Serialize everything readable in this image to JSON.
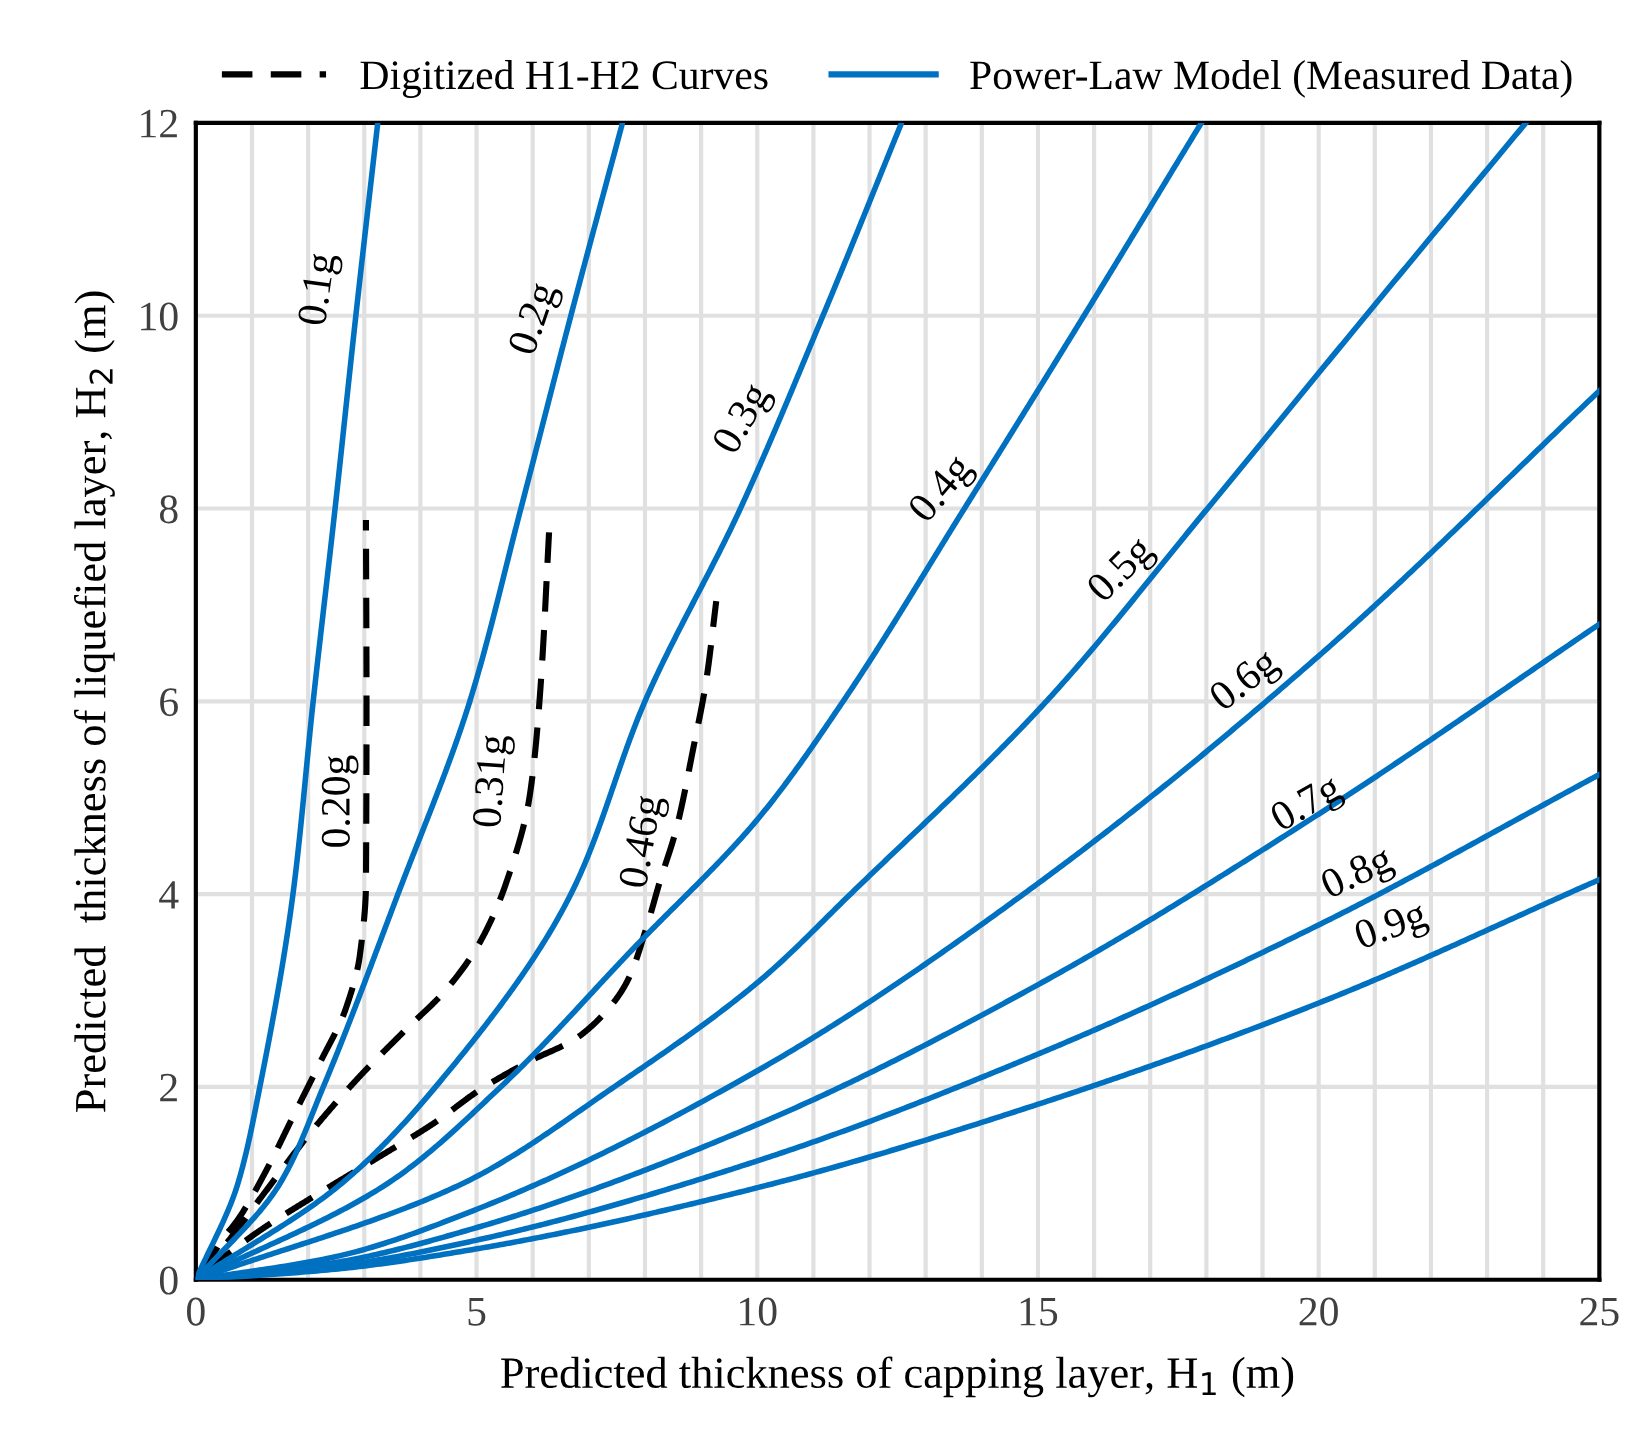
{
  "chart_data": {
    "type": "line",
    "xlabel": "Predicted thickness of capping layer, H$_{1}$ (m)",
    "ylabel": "Predicted  thickness of liquefied layer, H$_{2}$ (m)",
    "xlim": [
      0,
      25
    ],
    "ylim": [
      0,
      12
    ],
    "xticks": [
      0,
      {
        "value": 1,
        "label": null
      },
      {
        "value": 2,
        "label": null
      },
      {
        "value": 3,
        "label": null
      },
      {
        "value": 4,
        "label": null
      },
      5,
      {
        "value": 6,
        "label": null
      },
      {
        "value": 7,
        "label": null
      },
      {
        "value": 8,
        "label": null
      },
      {
        "value": 9,
        "label": null
      },
      10,
      {
        "value": 11,
        "label": null
      },
      {
        "value": 12,
        "label": null
      },
      {
        "value": 13,
        "label": null
      },
      {
        "value": 14,
        "label": null
      },
      15,
      {
        "value": 16,
        "label": null
      },
      {
        "value": 17,
        "label": null
      },
      {
        "value": 18,
        "label": null
      },
      {
        "value": 19,
        "label": null
      },
      20,
      {
        "value": 21,
        "label": null
      },
      {
        "value": 22,
        "label": null
      },
      {
        "value": 23,
        "label": null
      },
      {
        "value": 24,
        "label": null
      },
      25
    ],
    "yticks": [
      0,
      2,
      4,
      6,
      8,
      10,
      12
    ],
    "grid": true,
    "legend": "top",
    "marker": "none",
    "series": [
      {
        "name": "Digitized H1-H2 Curves",
        "color": "#000000",
        "line_style": "dashed",
        "x": [
          0.13,
          0.43,
          0.78,
          1.26,
          1.73,
          2.21,
          2.67,
          2.92,
          3.03,
          3.04,
          3.03
        ],
        "values": [
          0.06,
          0.38,
          0.65,
          1.14,
          1.69,
          2.25,
          2.81,
          3.36,
          4.1,
          6.0,
          7.88
        ]
      },
      {
        "color": "#000000",
        "line_style": "dashed",
        "x": [
          0,
          0.55,
          1.26,
          2.09,
          2.92,
          3.75,
          4.46,
          5.06,
          5.53,
          5.95,
          6.13,
          6.3
        ],
        "values": [
          0,
          0.38,
          0.93,
          1.56,
          2.11,
          2.6,
          3.01,
          3.5,
          4.12,
          5.03,
          6.07,
          7.84
        ]
      },
      {
        "color": "#000000",
        "line_style": "dashed",
        "x": [
          0.19,
          1.14,
          2.09,
          3.28,
          4.23,
          5.06,
          5.89,
          6.84,
          7.67,
          8.02,
          8.26,
          8.56,
          8.86,
          9.09,
          9.27
        ],
        "values": [
          0.1,
          0.51,
          0.86,
          1.28,
          1.62,
          1.97,
          2.25,
          2.53,
          3.08,
          3.64,
          4.12,
          4.68,
          5.51,
          6.21,
          7.04
        ]
      },
      {
        "name": "Power-Law Model (Measured Data)",
        "color": "#0070c0",
        "line_style": "solid",
        "x": [
          0,
          0.75,
          1.14,
          1.73,
          2.09,
          2.48,
          2.85,
          3.24
        ],
        "values": [
          0,
          1,
          2,
          4,
          6,
          8,
          10,
          12
        ]
      },
      {
        "color": "#0070c0",
        "line_style": "solid",
        "x": [
          0,
          1.5,
          2.27,
          3.6,
          4.88,
          5.79,
          6.68,
          7.6
        ],
        "values": [
          0,
          1,
          2,
          4,
          6,
          8,
          10,
          12
        ]
      },
      {
        "color": "#0070c0",
        "line_style": "solid",
        "x": [
          0,
          2.6,
          4.27,
          6.68,
          8.0,
          9.7,
          11.17,
          12.57
        ],
        "values": [
          0,
          1,
          2,
          4,
          6,
          8,
          10,
          12
        ]
      },
      {
        "color": "#0070c0",
        "line_style": "solid",
        "x": [
          0,
          3.42,
          5.43,
          7.8,
          10.04,
          11.53,
          13.69,
          15.82,
          17.91
        ],
        "values": [
          0,
          1,
          2,
          3.44,
          4.8,
          6,
          8,
          10,
          12
        ]
      },
      {
        "color": "#0070c0",
        "line_style": "solid",
        "x": [
          0,
          4.76,
          7.45,
          10.04,
          11.66,
          15.15,
          18.02,
          20.84,
          23.69
        ],
        "values": [
          0,
          1,
          2,
          3.1,
          4,
          6,
          8,
          10,
          12
        ]
      },
      {
        "color": "#0070c0",
        "line_style": "solid",
        "x": [
          0,
          2.5,
          5,
          10.04,
          15,
          20,
          25
        ],
        "values": [
          0,
          0.24,
          0.73,
          2.18,
          4.11,
          6.47,
          9.22
        ]
      },
      {
        "color": "#0070c0",
        "line_style": "solid",
        "x": [
          0,
          2.5,
          5,
          10.04,
          15,
          20,
          25
        ],
        "values": [
          0,
          0.18,
          0.54,
          1.62,
          3.06,
          4.83,
          6.8
        ]
      },
      {
        "color": "#0070c0",
        "line_style": "solid",
        "x": [
          0,
          2.5,
          5,
          10.04,
          15,
          20,
          25
        ],
        "values": [
          0,
          0.14,
          0.41,
          1.24,
          2.34,
          3.68,
          5.24
        ]
      },
      {
        "color": "#0070c0",
        "line_style": "solid",
        "x": [
          0,
          2.5,
          5,
          10.04,
          15,
          20,
          25
        ],
        "values": [
          0,
          0.11,
          0.32,
          0.96,
          1.82,
          2.87,
          4.15
        ]
      }
    ],
    "annotations": [
      "0.1g",
      "0.2g",
      "0.3g",
      "0.4g",
      "0.5g",
      "0.6g",
      "0.7g",
      "0.8g",
      "0.9g",
      "0.20g",
      "0.31g",
      "0.46g"
    ]
  }
}
